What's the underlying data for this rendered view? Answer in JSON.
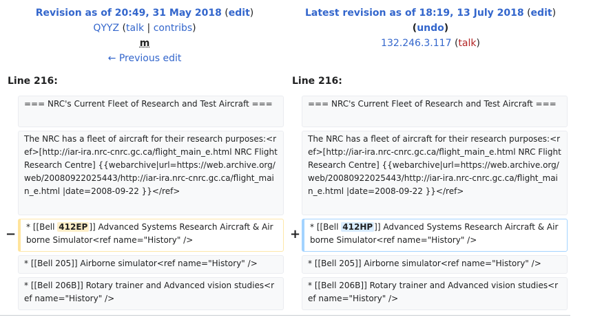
{
  "left": {
    "title_prefix": "Revision as of 20:49, 31 May 2018",
    "edit_link": "edit",
    "user": "QYYZ",
    "talk_link": "talk",
    "contribs_link": "contribs",
    "minor_mark": "m",
    "previous_edit": "← Previous edit",
    "line_label": "Line 216:"
  },
  "right": {
    "title_prefix": "Latest revision as of 18:19, 13 July 2018",
    "edit_link": "edit",
    "undo_link": "undo",
    "user": "132.246.3.117",
    "talk_link": "talk",
    "line_label": "Line 216:"
  },
  "diff": {
    "row1": "=== NRC's Current Fleet of Research and Test Aircraft ===",
    "row2": "The NRC has a fleet of aircraft for their research purposes:<ref>[http://iar-ira.nrc-cnrc.gc.ca/flight_main_e.html NRC Flight Research Centre] {{webarchive|url=https://web.archive.org/web/20080922025443/http://iar-ira.nrc-cnrc.gc.ca/flight_main_e.html |date=2008-09-22 }}</ref>",
    "row3_prefix": "* [[Bell ",
    "row3_left_changed": "412EP",
    "row3_right_changed": "412HP",
    "row3_suffix": "]] Advanced Systems Research Aircraft & Airborne Simulator<ref name=\"History\" />",
    "row4": "* [[Bell 205]] Airborne simulator<ref name=\"History\" />",
    "row5": "* [[Bell 206B]] Rotary trainer and Advanced vision studies<ref name=\"History\" />",
    "minus_sign": "−",
    "plus_sign": "+"
  }
}
